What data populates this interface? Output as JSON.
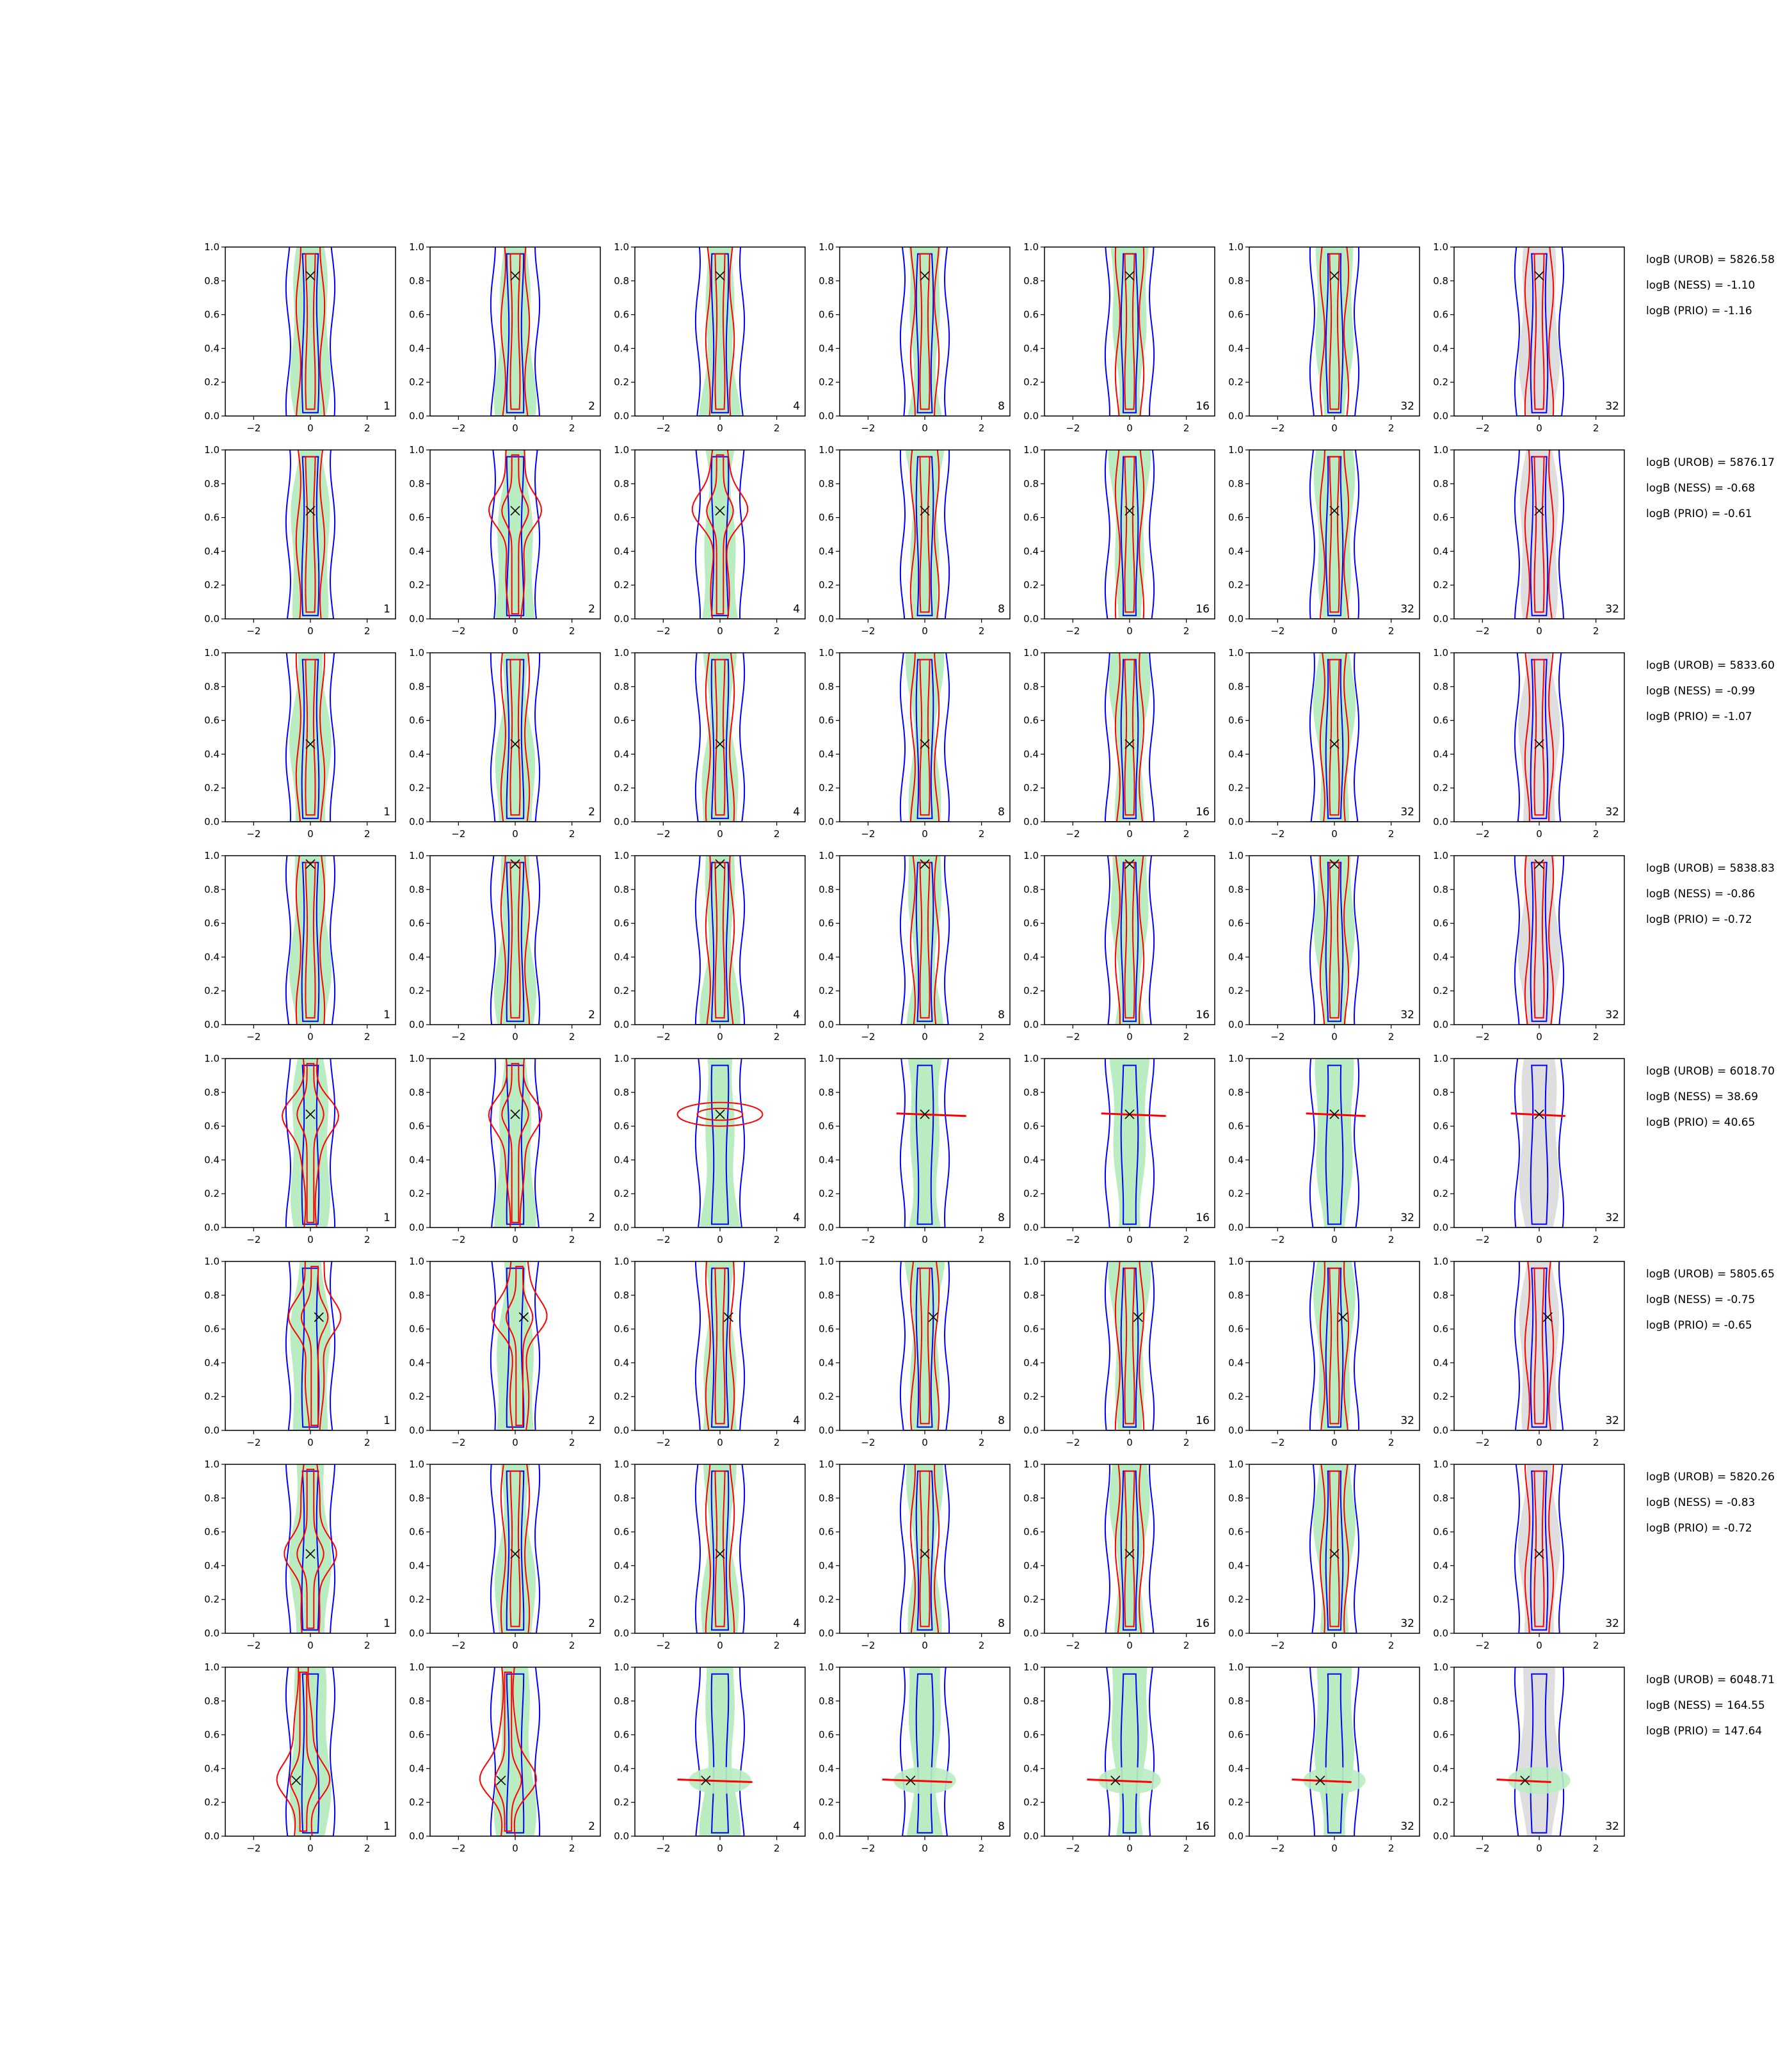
{
  "chart_data": {
    "type": "contour-grid",
    "rows": 8,
    "x_ticks": [
      "−2",
      "0",
      "2"
    ],
    "y_ticks": [
      "0.0",
      "0.2",
      "0.4",
      "0.6",
      "0.8",
      "1.0"
    ],
    "xlim": [
      -3,
      3
    ],
    "ylim": [
      0,
      1
    ],
    "panel_labels": [
      "1",
      "2",
      "4",
      "8",
      "16",
      "32",
      "32"
    ],
    "colors": {
      "blue_contour": "#0000ff",
      "red_contour": "#ff0000",
      "green_fill": "#b9ecc0",
      "gray_fill": "#dedede",
      "marker": "#000000"
    },
    "row_data": [
      {
        "truth": [
          0.0,
          0.83
        ],
        "red_shape": [
          "vertical",
          "vertical",
          "vertical",
          "vertical",
          "vertical",
          "vertical",
          "vertical"
        ],
        "logB": [
          "logB (UROB) = 5826.58",
          "logB (NESS) = -1.10",
          "logB (PRIO) = -1.16"
        ]
      },
      {
        "truth": [
          0.0,
          0.64
        ],
        "red_shape": [
          "vertical",
          "blob",
          "blob",
          "vertical",
          "vertical",
          "vertical",
          "vertical"
        ],
        "logB": [
          "logB (UROB) = 5876.17",
          "logB (NESS) = -0.68",
          "logB (PRIO) = -0.61"
        ]
      },
      {
        "truth": [
          0.0,
          0.46
        ],
        "red_shape": [
          "vertical",
          "vertical",
          "vertical",
          "vertical",
          "vertical",
          "vertical",
          "vertical"
        ],
        "logB": [
          "logB (UROB) = 5833.60",
          "logB (NESS) = -0.99",
          "logB (PRIO) = -1.07"
        ]
      },
      {
        "truth": [
          0.0,
          0.95
        ],
        "red_shape": [
          "vertical",
          "vertical",
          "vertical",
          "vertical",
          "vertical",
          "vertical",
          "vertical"
        ],
        "logB": [
          "logB (UROB) = 5838.83",
          "logB (NESS) = -0.86",
          "logB (PRIO) = -0.72"
        ]
      },
      {
        "truth": [
          0.0,
          0.67
        ],
        "red_shape": [
          "blob",
          "blob",
          "ellipse",
          "line",
          "line",
          "line",
          "line"
        ],
        "logB": [
          "logB (UROB) = 6018.70",
          "logB (NESS) = 38.69",
          "logB (PRIO) = 40.65"
        ]
      },
      {
        "truth": [
          0.3,
          0.67
        ],
        "red_shape": [
          "blob",
          "blob",
          "vertical",
          "vertical",
          "vertical",
          "vertical",
          "vertical"
        ],
        "logB": [
          "logB (UROB) = 5805.65",
          "logB (NESS) = -0.75",
          "logB (PRIO) = -0.65"
        ]
      },
      {
        "truth": [
          0.0,
          0.47
        ],
        "red_shape": [
          "blob",
          "vertical",
          "vertical",
          "vertical",
          "vertical",
          "vertical",
          "vertical"
        ],
        "logB": [
          "logB (UROB) = 5820.26",
          "logB (NESS) = -0.83",
          "logB (PRIO) = -0.72"
        ]
      },
      {
        "truth": [
          -0.5,
          0.33
        ],
        "red_shape": [
          "blob",
          "blob",
          "line",
          "line",
          "line",
          "line",
          "line"
        ],
        "logB": [
          "logB (UROB) = 6048.71",
          "logB (NESS) = 164.55",
          "logB (PRIO) = 147.64"
        ]
      }
    ]
  }
}
